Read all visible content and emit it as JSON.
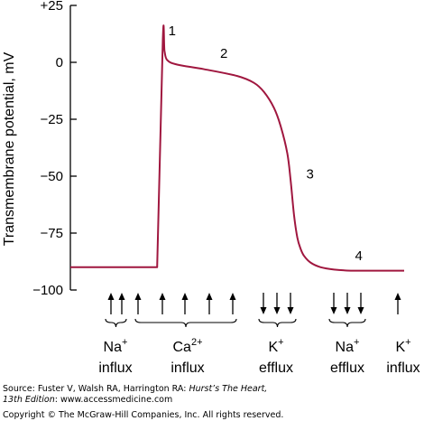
{
  "chart_data": {
    "type": "line",
    "ylabel": "Transmembrane potential, mV",
    "yticks": [
      {
        "value": 25,
        "label": "+25"
      },
      {
        "value": 0,
        "label": "0"
      },
      {
        "value": -25,
        "label": "−25"
      },
      {
        "value": -50,
        "label": "−50"
      },
      {
        "value": -75,
        "label": "−75"
      },
      {
        "value": -100,
        "label": "−100"
      }
    ],
    "ylim": [
      -100,
      25
    ],
    "xlim": [
      0,
      100
    ],
    "series": [
      {
        "color": "#a0173f",
        "x": [
          0,
          26,
          27.7,
          28.2,
          29,
          32,
          40,
          50,
          55,
          58,
          61,
          63,
          65,
          66,
          67,
          68,
          69,
          70,
          72,
          75,
          79,
          84,
          90,
          100
        ],
        "y": [
          -90,
          -90,
          10,
          5,
          1,
          -1,
          -3,
          -6,
          -9,
          -13,
          -20,
          -28,
          -40,
          -52,
          -67,
          -77,
          -82,
          -85,
          -88,
          -90,
          -91,
          -91.5,
          -91.5,
          -91.5
        ]
      }
    ],
    "phase_labels": [
      {
        "text": "1",
        "x": 30.5,
        "y": 12
      },
      {
        "text": "2",
        "x": 46,
        "y": 2
      },
      {
        "text": "3",
        "x": 71.8,
        "y": -51
      },
      {
        "text": "4",
        "x": 86.4,
        "y": -87
      }
    ],
    "ion_groups": [
      {
        "name": "Na",
        "sup": "+",
        "sub": "influx",
        "arrows": [
          "up",
          "up"
        ]
      },
      {
        "name": "Ca",
        "sup": "2+",
        "sub": "influx",
        "arrows": [
          "up",
          "up",
          "up",
          "up",
          "up"
        ]
      },
      {
        "name": "K",
        "sup": "+",
        "sub": "efflux",
        "arrows": [
          "down",
          "down",
          "down"
        ]
      },
      {
        "name": "Na",
        "sup": "+",
        "sub": "efflux",
        "arrows": [
          "down",
          "down",
          "down"
        ]
      },
      {
        "name": "K",
        "sup": "+",
        "sub": "influx",
        "arrows": [
          "up"
        ]
      }
    ]
  },
  "source": {
    "prefix": "Source: Fuster V, Walsh RA, Harrington RA: ",
    "book_title": "Hurst’s The Heart,",
    "edition": "13th Edition",
    "suffix": ": www.accessmedicine.com",
    "copyright": "Copyright © The McGraw-Hill Companies, Inc. All rights reserved."
  },
  "colors": {
    "curve": "#a0173f",
    "axis": "#000000"
  }
}
